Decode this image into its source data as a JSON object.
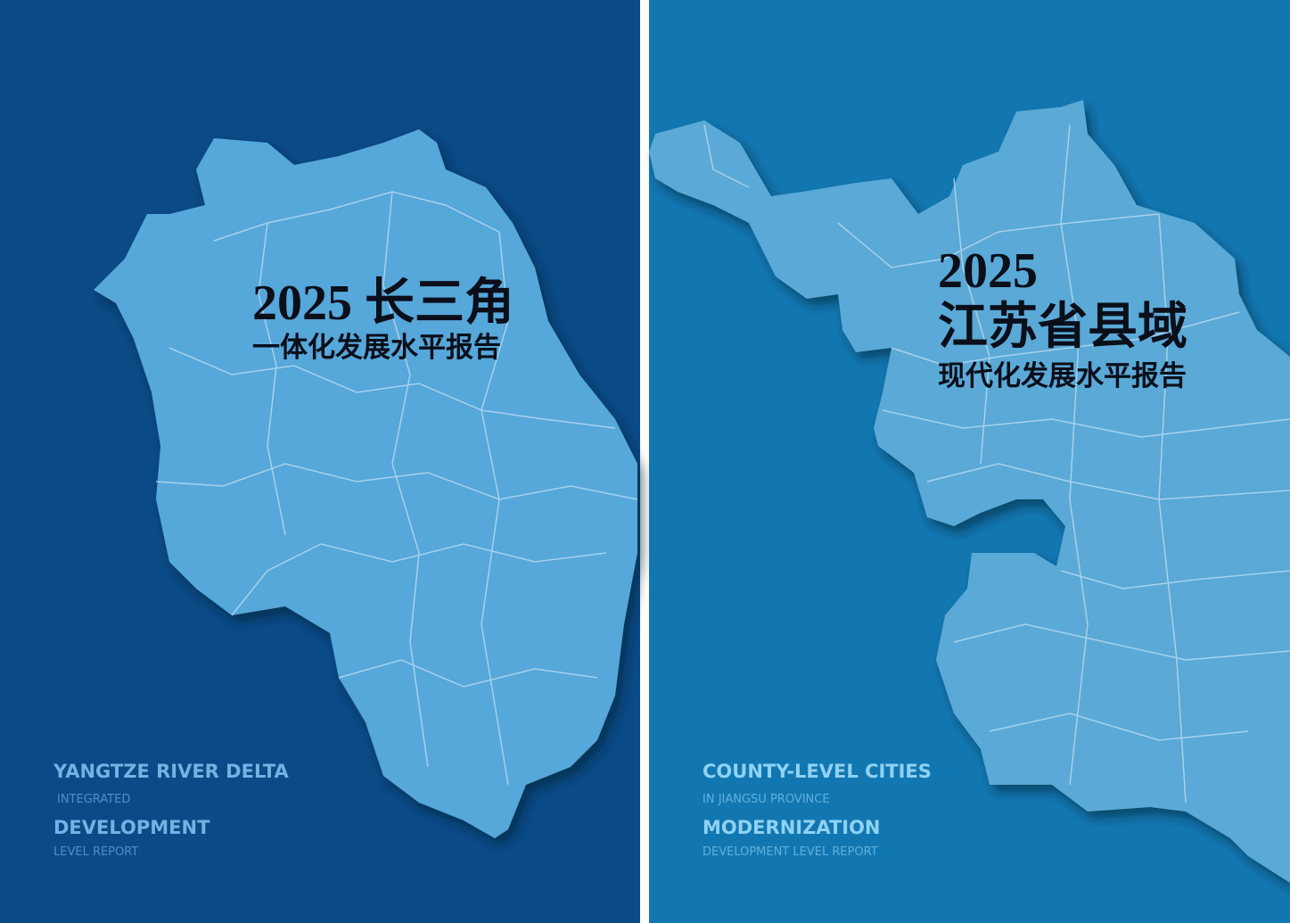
{
  "covers": [
    {
      "title": "2025 长三角",
      "subtitle": "一体化发展水平报告",
      "english": [
        "YANGTZE RIVER DELTA",
        "INTEGRATED",
        "DEVELOPMENT",
        "LEVEL REPORT"
      ]
    },
    {
      "title_lines": [
        "2025",
        "江苏省县域"
      ],
      "subtitle": "现代化发展水平报告",
      "english": [
        "COUNTY-LEVEL CITIES",
        "IN JIANGSU PROVINCE",
        "MODERNIZATION",
        "DEVELOPMENT LEVEL REPORT"
      ]
    }
  ]
}
